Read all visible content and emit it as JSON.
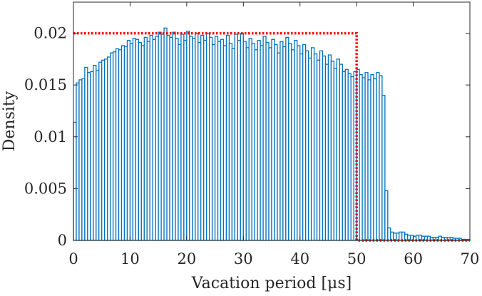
{
  "chart_data": {
    "type": "bar",
    "subtype": "histogram-with-reference-density",
    "title": "",
    "xlabel": "Vacation period [μs]",
    "ylabel": "Density",
    "xlim": [
      0,
      70
    ],
    "ylim": [
      0,
      0.023
    ],
    "xticks": [
      "0",
      "10",
      "20",
      "30",
      "40",
      "50",
      "60",
      "70"
    ],
    "yticks": [
      "0",
      "0.005",
      "0.01",
      "0.015",
      "0.02"
    ],
    "ytick_values": [
      0,
      0.005,
      0.01,
      0.015,
      0.02
    ],
    "grid": false,
    "legend": "none",
    "bin_width": 0.5,
    "histogram": {
      "bin_start": 0,
      "values": [
        0.0114,
        0.0152,
        0.0155,
        0.0156,
        0.0167,
        0.0162,
        0.0163,
        0.0169,
        0.0164,
        0.0172,
        0.0174,
        0.0175,
        0.0177,
        0.0181,
        0.0182,
        0.0185,
        0.0184,
        0.0188,
        0.0187,
        0.0193,
        0.019,
        0.0195,
        0.0194,
        0.0191,
        0.0188,
        0.0196,
        0.0192,
        0.0198,
        0.0194,
        0.0197,
        0.0201,
        0.0199,
        0.0205,
        0.0198,
        0.0196,
        0.0201,
        0.0195,
        0.0189,
        0.0199,
        0.0193,
        0.0202,
        0.0197,
        0.0195,
        0.02,
        0.0191,
        0.0198,
        0.0193,
        0.02,
        0.0196,
        0.0189,
        0.0197,
        0.0192,
        0.0194,
        0.0188,
        0.0198,
        0.019,
        0.0185,
        0.0199,
        0.0193,
        0.02,
        0.0192,
        0.0186,
        0.0195,
        0.019,
        0.0184,
        0.0193,
        0.0188,
        0.0197,
        0.0191,
        0.0186,
        0.0194,
        0.0189,
        0.0181,
        0.0192,
        0.0187,
        0.0196,
        0.019,
        0.0184,
        0.0193,
        0.0188,
        0.018,
        0.0189,
        0.0183,
        0.0176,
        0.0186,
        0.018,
        0.0174,
        0.0183,
        0.0178,
        0.017,
        0.0179,
        0.0173,
        0.0166,
        0.0175,
        0.017,
        0.0163,
        0.0165,
        0.0161,
        0.0158,
        0.0163,
        0.0165,
        0.016,
        0.0157,
        0.0162,
        0.0155,
        0.016,
        0.0156,
        0.0162,
        0.0159,
        0.014,
        0.0048,
        0.0012,
        0.0008,
        0.0007,
        0.0007,
        0.0008,
        0.0008,
        0.0006,
        0.0005,
        0.0005,
        0.0004,
        0.0005,
        0.0005,
        0.0004,
        0.0004,
        0.0004,
        0.0003,
        0.0003,
        0.0003,
        0.0004,
        0.0003,
        0.0003,
        0.0003,
        0.0003,
        0.0002,
        0.0002,
        0.0002,
        0.0001,
        0.0001,
        0.0001
      ]
    },
    "reference_density": {
      "style": "red dotted",
      "x": [
        0,
        50,
        50,
        70
      ],
      "y": [
        0.02,
        0.02,
        0,
        0
      ]
    },
    "colors": {
      "bar_edge": "#0072BD",
      "reference_line": "#FF0000",
      "axis": "#262626"
    }
  }
}
